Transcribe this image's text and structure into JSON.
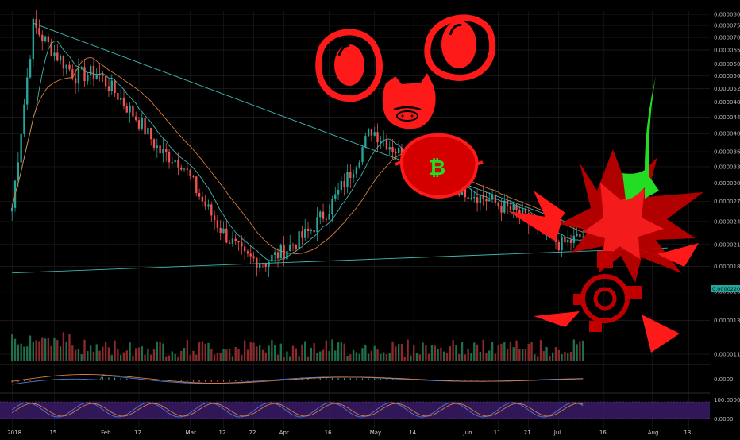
{
  "colors": {
    "background": "#000000",
    "grid": "#1f1f1f",
    "candle_up": "#26a69a",
    "candle_down": "#ef5350",
    "ma_fast": "#3fb5b0",
    "ma_slow": "#d77c3f",
    "trendline": "#3fb5b0",
    "annotation_red": "#ff1a1a",
    "annotation_dark_red": "#b00000",
    "annotation_green": "#22dd22",
    "stoch_band": "#3a1b66",
    "volume_up": "#1f6f4a",
    "volume_down": "#8b2a2a",
    "last_price_tag": "#26a69a"
  },
  "price_axis": {
    "labels": [
      "0.00008000",
      "0.00007500",
      "0.00007000",
      "0.00006500",
      "0.00006000",
      "0.00005600",
      "0.00005200",
      "0.00004800",
      "0.00004400",
      "0.00004000",
      "0.00003600",
      "0.00003300",
      "0.00003000",
      "0.00002700",
      "0.00002400",
      "0.00002100",
      "0.00001850",
      "0.00001600",
      "0.00001350",
      "0.00001110"
    ],
    "last_price": "0.00002200"
  },
  "macd_axis": {
    "label": "0.0000"
  },
  "stoch_axis": {
    "labels": [
      "100.0000",
      "0.0000"
    ]
  },
  "time_axis": {
    "labels": [
      "2018",
      "15",
      "Feb",
      "12",
      "Mar",
      "12",
      "22",
      "Apr",
      "16",
      "May",
      "14",
      "Jun",
      "11",
      "21",
      "Jul",
      "16",
      "Aug",
      "13"
    ]
  },
  "annotations": {
    "coin_symbol": "₿",
    "icons": [
      "left-eye-icon",
      "right-eye-icon",
      "pig-face-icon",
      "bitcoin-lemon-icon",
      "explosion-icon",
      "green-rocket-icon",
      "target-icon"
    ]
  },
  "chart_data": {
    "type": "candlestick",
    "scale": "log",
    "ylim": [
      1.08e-05,
      8.15e-05
    ],
    "x": [
      "2018-01-01",
      "2018-01-08",
      "2018-01-15",
      "2018-01-22",
      "2018-01-29",
      "2018-02-05",
      "2018-02-12",
      "2018-02-19",
      "2018-02-26",
      "2018-03-05",
      "2018-03-12",
      "2018-03-19",
      "2018-03-26",
      "2018-04-02",
      "2018-04-09",
      "2018-04-16",
      "2018-04-23",
      "2018-04-30",
      "2018-05-07",
      "2018-05-14",
      "2018-05-21",
      "2018-05-28",
      "2018-06-04",
      "2018-06-11",
      "2018-06-18",
      "2018-06-25",
      "2018-07-02",
      "2018-07-09"
    ],
    "series": [
      {
        "values": [
          2.6e-05,
          7.5e-05,
          6.4e-05,
          5.6e-05,
          5.7e-05,
          5e-05,
          4.3e-05,
          3.6e-05,
          3.4e-05,
          2.7e-05,
          2.25e-05,
          1.95e-05,
          1.9e-05,
          2.05e-05,
          2.25e-05,
          2.6e-05,
          3.2e-05,
          4.1e-05,
          3.7e-05,
          3.3e-05,
          3.1e-05,
          2.95e-05,
          2.8e-05,
          2.65e-05,
          2.5e-05,
          2.25e-05,
          2.1e-05,
          2.2e-05
        ]
      }
    ],
    "trendlines": [
      {
        "from": [
          "2018-01-08",
          7.6e-05
        ],
        "to": [
          "2018-07-16",
          2.05e-05
        ]
      },
      {
        "from": [
          "2018-01-01",
          1.78e-05
        ],
        "to": [
          "2018-07-16",
          2.04e-05
        ]
      }
    ],
    "panels": [
      "price",
      "volume",
      "macd",
      "stochastic"
    ],
    "grid": true
  }
}
